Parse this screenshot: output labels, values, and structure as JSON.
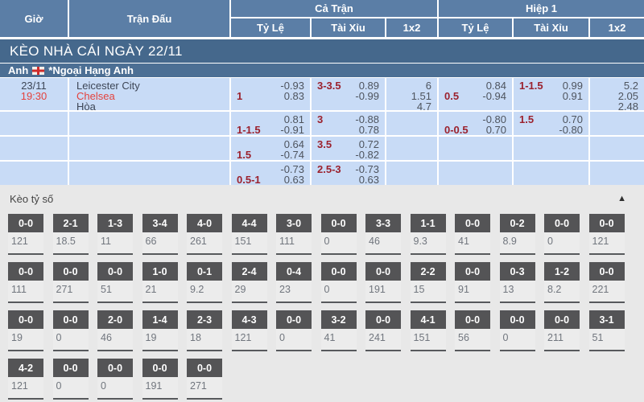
{
  "colors": {
    "header_blue": "#5b7ea6",
    "section_bar": "#45688c",
    "league_bar": "#4c6f94",
    "row_bg": "#c8dbf6",
    "handicap_red": "#9b212d",
    "accent_red": "#e4423d",
    "score_box_dark": "#545456"
  },
  "header": {
    "time_col": "Giờ",
    "match_col": "Trận Đấu",
    "full_match": "Cả Trận",
    "first_half": "Hiệp 1",
    "handicap": "Tỷ Lệ",
    "over_under": "Tài Xỉu",
    "one_x_two": "1x2"
  },
  "section_bar": {
    "title": "KÈO NHÀ CÁI NGÀY 22/11"
  },
  "league_bar": {
    "country": "Anh",
    "flag_icon": "england-flag",
    "league": "*Ngoại Hạng Anh"
  },
  "match": {
    "date": "23/11",
    "time": "19:30",
    "home": "Leicester City",
    "away": "Chelsea",
    "draw": "Hòa"
  },
  "odds_rows": [
    {
      "ft_hdp": {
        "hdp": "1",
        "odds": [
          "-0.93",
          "0.83"
        ]
      },
      "ft_ou": {
        "hdp": "3-3.5",
        "odds": [
          "0.89",
          "-0.99"
        ]
      },
      "ft_1x2": [
        "6",
        "1.51",
        "4.7"
      ],
      "h1_hdp": {
        "hdp": "0.5",
        "odds": [
          "0.84",
          "-0.94"
        ]
      },
      "h1_ou": {
        "hdp": "1-1.5",
        "odds": [
          "0.99",
          "0.91"
        ]
      },
      "h1_1x2": [
        "5.2",
        "2.05",
        "2.48"
      ]
    },
    {
      "ft_hdp": {
        "hdp": "1-1.5",
        "odds": [
          "0.81",
          "-0.91"
        ]
      },
      "ft_ou": {
        "hdp": "3",
        "odds": [
          "-0.88",
          "0.78"
        ]
      },
      "ft_1x2": [
        "",
        "",
        ""
      ],
      "h1_hdp": {
        "hdp": "0-0.5",
        "odds": [
          "-0.80",
          "0.70"
        ]
      },
      "h1_ou": {
        "hdp": "1.5",
        "odds": [
          "0.70",
          "-0.80"
        ]
      },
      "h1_1x2": [
        "",
        "",
        ""
      ]
    },
    {
      "ft_hdp": {
        "hdp": "1.5",
        "odds": [
          "0.64",
          "-0.74"
        ]
      },
      "ft_ou": {
        "hdp": "3.5",
        "odds": [
          "0.72",
          "-0.82"
        ]
      },
      "ft_1x2": [
        "",
        "",
        ""
      ],
      "h1_hdp": {
        "hdp": "",
        "odds": [
          "",
          ""
        ]
      },
      "h1_ou": {
        "hdp": "",
        "odds": [
          "",
          ""
        ]
      },
      "h1_1x2": [
        "",
        "",
        ""
      ]
    },
    {
      "ft_hdp": {
        "hdp": "0.5-1",
        "odds": [
          "-0.73",
          "0.63"
        ]
      },
      "ft_ou": {
        "hdp": "2.5-3",
        "odds": [
          "-0.73",
          "0.63"
        ]
      },
      "ft_1x2": [
        "",
        "",
        ""
      ],
      "h1_hdp": {
        "hdp": "",
        "odds": [
          "",
          ""
        ]
      },
      "h1_ou": {
        "hdp": "",
        "odds": [
          "",
          ""
        ]
      },
      "h1_1x2": [
        "",
        "",
        ""
      ]
    }
  ],
  "score_section": {
    "title": "Kèo tỷ số",
    "collapse_icon": "triangle-up",
    "rows": [
      [
        {
          "score": "0-0",
          "odds": "121"
        },
        {
          "score": "2-1",
          "odds": "18.5"
        },
        {
          "score": "1-3",
          "odds": "11"
        },
        {
          "score": "3-4",
          "odds": "66"
        },
        {
          "score": "4-0",
          "odds": "261"
        },
        {
          "score": "4-4",
          "odds": "151"
        },
        {
          "score": "3-0",
          "odds": "111"
        },
        {
          "score": "0-0",
          "odds": "0"
        },
        {
          "score": "3-3",
          "odds": "46"
        },
        {
          "score": "1-1",
          "odds": "9.3"
        },
        {
          "score": "0-0",
          "odds": "41"
        },
        {
          "score": "0-2",
          "odds": "8.9"
        },
        {
          "score": "0-0",
          "odds": "0"
        },
        {
          "score": "0-0",
          "odds": "121"
        }
      ],
      [
        {
          "score": "0-0",
          "odds": "111"
        },
        {
          "score": "0-0",
          "odds": "271"
        },
        {
          "score": "0-0",
          "odds": "51"
        },
        {
          "score": "1-0",
          "odds": "21"
        },
        {
          "score": "0-1",
          "odds": "9.2"
        },
        {
          "score": "2-4",
          "odds": "29"
        },
        {
          "score": "0-4",
          "odds": "23"
        },
        {
          "score": "0-0",
          "odds": "0"
        },
        {
          "score": "0-0",
          "odds": "191"
        },
        {
          "score": "2-2",
          "odds": "15"
        },
        {
          "score": "0-0",
          "odds": "91"
        },
        {
          "score": "0-3",
          "odds": "13"
        },
        {
          "score": "1-2",
          "odds": "8.2"
        },
        {
          "score": "0-0",
          "odds": "221"
        }
      ],
      [
        {
          "score": "0-0",
          "odds": "19"
        },
        {
          "score": "0-0",
          "odds": "0"
        },
        {
          "score": "2-0",
          "odds": "46"
        },
        {
          "score": "1-4",
          "odds": "19"
        },
        {
          "score": "2-3",
          "odds": "18"
        },
        {
          "score": "4-3",
          "odds": "121"
        },
        {
          "score": "0-0",
          "odds": "0"
        },
        {
          "score": "3-2",
          "odds": "41"
        },
        {
          "score": "0-0",
          "odds": "241"
        },
        {
          "score": "4-1",
          "odds": "151"
        },
        {
          "score": "0-0",
          "odds": "56"
        },
        {
          "score": "0-0",
          "odds": "0"
        },
        {
          "score": "0-0",
          "odds": "211"
        },
        {
          "score": "3-1",
          "odds": "51"
        }
      ],
      [
        {
          "score": "4-2",
          "odds": "121"
        },
        {
          "score": "0-0",
          "odds": "0"
        },
        {
          "score": "0-0",
          "odds": "0"
        },
        {
          "score": "0-0",
          "odds": "191"
        },
        {
          "score": "0-0",
          "odds": "271"
        }
      ]
    ]
  }
}
